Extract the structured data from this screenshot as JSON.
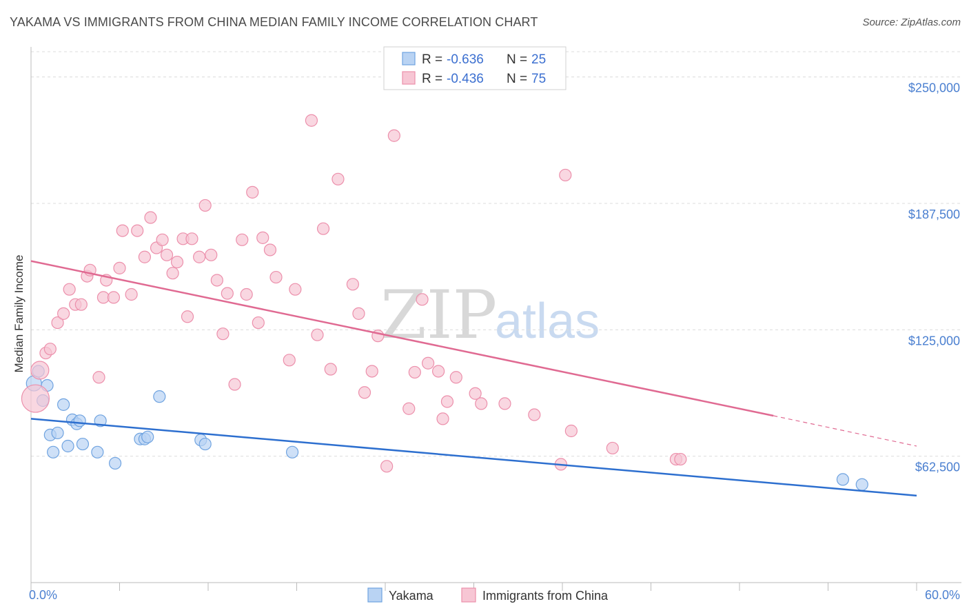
{
  "title": "YAKAMA VS IMMIGRANTS FROM CHINA MEDIAN FAMILY INCOME CORRELATION CHART",
  "source": "Source: ZipAtlas.com",
  "watermark": {
    "zip": "ZIP",
    "atlas": "atlas"
  },
  "chart_data": {
    "type": "scatter",
    "title": "YAKAMA VS IMMIGRANTS FROM CHINA MEDIAN FAMILY INCOME CORRELATION CHART",
    "xlabel": "",
    "ylabel": "Median Family Income",
    "xlim": [
      0,
      60
    ],
    "ylim": [
      0,
      262500
    ],
    "x_tick_labels": [
      "0.0%",
      "60.0%"
    ],
    "y_ticks": [
      62500,
      125000,
      187500,
      250000
    ],
    "y_tick_labels": [
      "$62,500",
      "$125,000",
      "$187,500",
      "$250,000"
    ],
    "grid": true,
    "legend": {
      "position": "top-center",
      "entries": [
        {
          "r_label": "R = ",
          "r": "-0.636",
          "n_label": "N = ",
          "n": "25"
        },
        {
          "r_label": "R = ",
          "r": "-0.436",
          "n_label": "N = ",
          "n": "75"
        }
      ]
    },
    "series": [
      {
        "name": "Yakama",
        "color": "#6fa3e0",
        "fill": "#b9d3f3",
        "line_color": "#2d6fcf",
        "trend": {
          "x0": 0,
          "y0": 81000,
          "x1": 60,
          "y1": 43000
        },
        "points": [
          [
            0.2,
            98500
          ],
          [
            0.5,
            104500
          ],
          [
            1.1,
            97500
          ],
          [
            0.8,
            90000
          ],
          [
            2.2,
            88000
          ],
          [
            2.8,
            80500
          ],
          [
            3.1,
            78500
          ],
          [
            3.3,
            80000
          ],
          [
            4.7,
            80000
          ],
          [
            1.3,
            73000
          ],
          [
            1.8,
            74000
          ],
          [
            2.5,
            67500
          ],
          [
            3.5,
            68500
          ],
          [
            4.5,
            64500
          ],
          [
            1.5,
            64500
          ],
          [
            5.7,
            59000
          ],
          [
            7.4,
            71000
          ],
          [
            7.7,
            71000
          ],
          [
            7.9,
            72000
          ],
          [
            8.7,
            92000
          ],
          [
            11.5,
            70500
          ],
          [
            11.8,
            68500
          ],
          [
            17.7,
            64500
          ],
          [
            55.0,
            51000
          ],
          [
            56.3,
            48500
          ]
        ]
      },
      {
        "name": "Immigrants from China",
        "color": "#ec8fab",
        "fill": "#f7c6d4",
        "line_color": "#e06a92",
        "trend": {
          "x0": 0,
          "y0": 159000,
          "x1": 50.3,
          "y1": 82500
        },
        "trend_dashed_to": {
          "x": 60,
          "y": 67500
        },
        "points": [
          [
            0.3,
            91000
          ],
          [
            0.6,
            105000
          ],
          [
            1.0,
            113500
          ],
          [
            1.3,
            115500
          ],
          [
            1.8,
            128500
          ],
          [
            2.2,
            133000
          ],
          [
            2.6,
            145000
          ],
          [
            3.0,
            137500
          ],
          [
            3.4,
            137500
          ],
          [
            3.8,
            151500
          ],
          [
            4.0,
            154500
          ],
          [
            4.6,
            101500
          ],
          [
            4.9,
            141000
          ],
          [
            5.1,
            149500
          ],
          [
            5.6,
            141000
          ],
          [
            6.0,
            155500
          ],
          [
            6.2,
            174000
          ],
          [
            6.8,
            142500
          ],
          [
            7.2,
            174000
          ],
          [
            7.7,
            161000
          ],
          [
            8.1,
            180500
          ],
          [
            8.5,
            165500
          ],
          [
            8.9,
            169500
          ],
          [
            9.2,
            162000
          ],
          [
            9.6,
            153000
          ],
          [
            9.9,
            158500
          ],
          [
            10.3,
            170000
          ],
          [
            10.6,
            131500
          ],
          [
            10.9,
            170000
          ],
          [
            11.4,
            161000
          ],
          [
            11.8,
            186500
          ],
          [
            12.2,
            162000
          ],
          [
            12.6,
            149500
          ],
          [
            13.0,
            123000
          ],
          [
            13.3,
            143000
          ],
          [
            13.8,
            98000
          ],
          [
            14.3,
            169500
          ],
          [
            14.6,
            142500
          ],
          [
            15.0,
            193000
          ],
          [
            15.4,
            128500
          ],
          [
            15.7,
            170500
          ],
          [
            16.2,
            164500
          ],
          [
            16.6,
            151000
          ],
          [
            17.5,
            110000
          ],
          [
            17.9,
            145000
          ],
          [
            19.0,
            228500
          ],
          [
            19.4,
            122500
          ],
          [
            19.8,
            175000
          ],
          [
            20.3,
            105500
          ],
          [
            20.8,
            199500
          ],
          [
            21.8,
            147500
          ],
          [
            22.2,
            133000
          ],
          [
            22.6,
            94000
          ],
          [
            23.1,
            104500
          ],
          [
            23.5,
            122000
          ],
          [
            24.1,
            57500
          ],
          [
            24.6,
            221000
          ],
          [
            25.6,
            86000
          ],
          [
            26.0,
            104000
          ],
          [
            26.5,
            140000
          ],
          [
            26.9,
            108500
          ],
          [
            27.6,
            104500
          ],
          [
            27.9,
            81000
          ],
          [
            28.2,
            89500
          ],
          [
            28.8,
            101500
          ],
          [
            30.1,
            93500
          ],
          [
            30.5,
            88500
          ],
          [
            32.1,
            88500
          ],
          [
            34.1,
            83000
          ],
          [
            35.9,
            58500
          ],
          [
            36.2,
            201500
          ],
          [
            36.6,
            75000
          ],
          [
            39.4,
            66500
          ],
          [
            43.7,
            61000
          ],
          [
            44.0,
            61000
          ]
        ]
      }
    ]
  },
  "bottom_legend": [
    "Yakama",
    "Immigrants from China"
  ]
}
